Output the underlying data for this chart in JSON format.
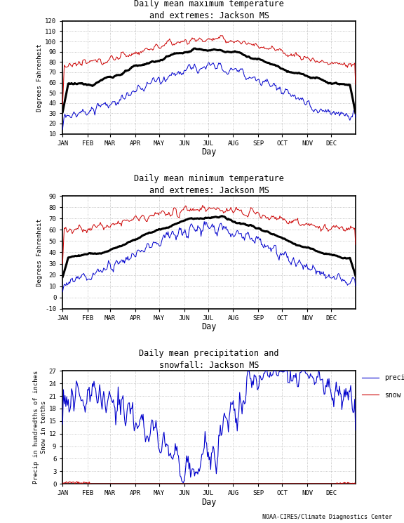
{
  "title1": "Daily mean maximum temperature\nand extremes: Jackson MS",
  "title2": "Daily mean minimum temperature\nand extremes: Jackson MS",
  "title3": "Daily mean precipitation and\nsnowfall: Jackson MS",
  "ylabel1": "Degrees Fahrenheit",
  "ylabel2": "Degrees Fahrenheit",
  "ylabel3": "Precip in hundredths of inches\nSnow in tenths",
  "xlabel": "Day",
  "months": [
    "JAN",
    "FEB",
    "MAR",
    "APR",
    "MAY",
    "JUN",
    "JUL",
    "AUG",
    "SEP",
    "OCT",
    "NOV",
    "DEC"
  ],
  "bg_color": "#ffffff",
  "grid_color": "#aaaaaa",
  "mean_max_color": "#000000",
  "extreme_max_color": "#cc0000",
  "extreme_min_color": "#0000cc",
  "precip_color": "#0000cc",
  "snow_color": "#cc0000",
  "panel1_ylim": [
    10,
    120
  ],
  "panel1_yticks": [
    10,
    20,
    30,
    40,
    50,
    60,
    70,
    80,
    90,
    100,
    110,
    120
  ],
  "panel2_ylim": [
    -10,
    90
  ],
  "panel2_yticks": [
    -10,
    0,
    10,
    20,
    30,
    40,
    50,
    60,
    70,
    80,
    90
  ],
  "panel3_ylim": [
    0,
    27
  ],
  "panel3_yticks": [
    0,
    3,
    6,
    9,
    12,
    15,
    18,
    21,
    24,
    27
  ],
  "footer": "NOAA-CIRES/Climate Diagnostics Center",
  "mean_lw": 2.2,
  "extreme_lw": 0.7
}
